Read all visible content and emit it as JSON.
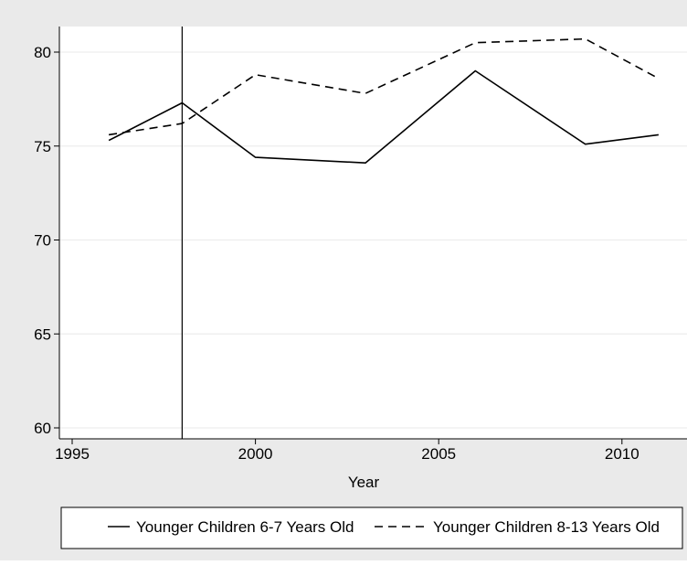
{
  "chart_data": {
    "type": "line",
    "title": "",
    "xlabel": "Year",
    "ylabel": "",
    "xlim": [
      1995,
      2011
    ],
    "ylim": [
      60,
      81
    ],
    "x_ticks": [
      1995,
      2000,
      2005,
      2010
    ],
    "y_ticks": [
      60,
      65,
      70,
      75,
      80
    ],
    "x_tick_labels": [
      "1995",
      "2000",
      "2005",
      "2010"
    ],
    "y_tick_labels": [
      "60",
      "65",
      "70",
      "75",
      "80"
    ],
    "grid": "horizontal",
    "legend_position": "bottom",
    "reference_line_x": 1998,
    "series": [
      {
        "name": "Younger Children 6-7 Years Old",
        "style": "solid",
        "x": [
          1996,
          1998,
          2000,
          2003,
          2006,
          2009,
          2011
        ],
        "values": [
          75.3,
          77.3,
          74.4,
          74.1,
          79.0,
          75.1,
          75.6
        ]
      },
      {
        "name": "Younger Children 8-13 Years Old",
        "style": "dashed",
        "x": [
          1996,
          1998,
          2000,
          2003,
          2006,
          2009,
          2011
        ],
        "values": [
          75.6,
          76.2,
          78.8,
          77.8,
          80.5,
          80.7,
          78.6
        ]
      }
    ]
  },
  "colors": {
    "outer_background": "#eaeaea",
    "plot_background": "#ffffff",
    "grid": "#ededed",
    "line": "#000000"
  }
}
